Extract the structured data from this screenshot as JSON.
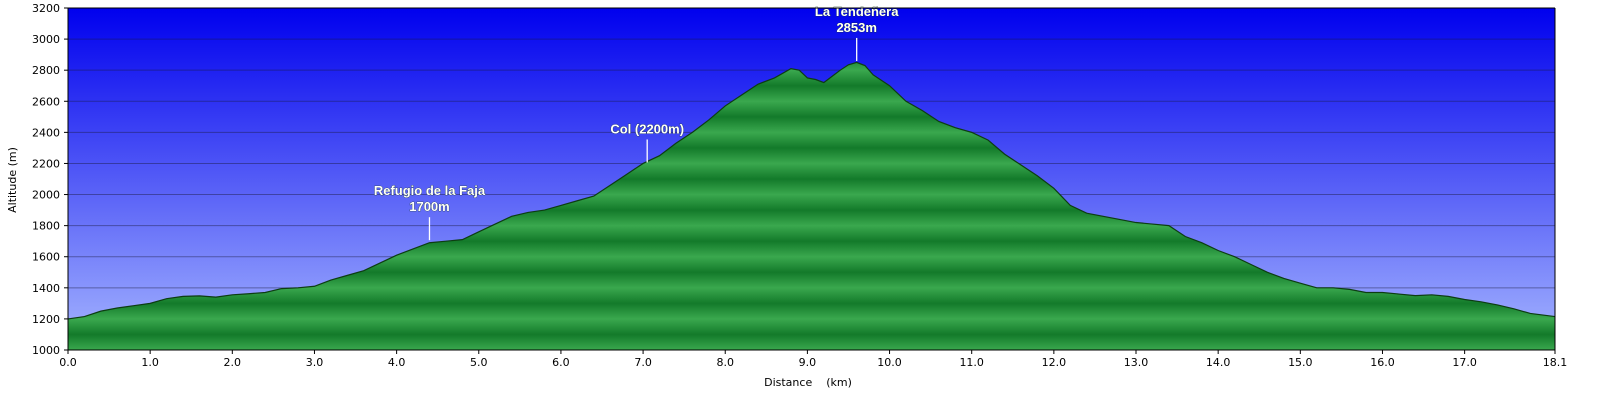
{
  "chart_data": {
    "type": "area",
    "xlabel": "Distance    (km)",
    "ylabel": "Altitude (m)",
    "xlim": [
      0,
      18.1
    ],
    "ylim": [
      1000,
      3200
    ],
    "x_ticks": [
      "0.0",
      "1.0",
      "2.0",
      "3.0",
      "4.0",
      "5.0",
      "6.0",
      "7.0",
      "8.0",
      "9.0",
      "10.0",
      "11.0",
      "12.0",
      "13.0",
      "14.0",
      "15.0",
      "16.0",
      "17.0",
      "18.1"
    ],
    "y_ticks": [
      "1000",
      "1200",
      "1400",
      "1600",
      "1800",
      "2000",
      "2200",
      "2400",
      "2600",
      "2800",
      "3000",
      "3200"
    ],
    "grid": true,
    "colors": {
      "sky_top": "#0000ee",
      "sky_bottom": "#a6b6ff",
      "fill_light": "#3aa84e",
      "fill_dark": "#137a2a",
      "outline": "#0d3d12"
    },
    "series": [
      {
        "x": [
          0.0,
          0.2,
          0.4,
          0.6,
          0.8,
          1.0,
          1.2,
          1.4,
          1.6,
          1.8,
          2.0,
          2.2,
          2.4,
          2.6,
          2.8,
          3.0,
          3.2,
          3.4,
          3.6,
          3.8,
          4.0,
          4.2,
          4.4,
          4.6,
          4.8,
          5.0,
          5.2,
          5.4,
          5.6,
          5.8,
          6.0,
          6.2,
          6.4,
          6.6,
          6.8,
          7.0,
          7.2,
          7.4,
          7.6,
          7.8,
          8.0,
          8.2,
          8.4,
          8.6,
          8.8,
          8.9,
          9.0,
          9.1,
          9.2,
          9.3,
          9.4,
          9.5,
          9.6,
          9.7,
          9.8,
          10.0,
          10.2,
          10.4,
          10.6,
          10.8,
          11.0,
          11.2,
          11.4,
          11.6,
          11.8,
          12.0,
          12.2,
          12.4,
          12.6,
          12.8,
          13.0,
          13.2,
          13.4,
          13.6,
          13.8,
          14.0,
          14.2,
          14.4,
          14.6,
          14.8,
          15.0,
          15.2,
          15.4,
          15.6,
          15.8,
          16.0,
          16.2,
          16.4,
          16.6,
          16.8,
          17.0,
          17.2,
          17.4,
          17.6,
          17.8,
          18.1
        ],
        "y": [
          1200,
          1215,
          1250,
          1270,
          1285,
          1300,
          1330,
          1345,
          1348,
          1340,
          1355,
          1362,
          1370,
          1395,
          1400,
          1410,
          1450,
          1480,
          1510,
          1560,
          1610,
          1650,
          1690,
          1700,
          1710,
          1760,
          1810,
          1860,
          1885,
          1900,
          1930,
          1960,
          1990,
          2060,
          2130,
          2200,
          2250,
          2330,
          2400,
          2480,
          2570,
          2640,
          2710,
          2750,
          2810,
          2800,
          2750,
          2740,
          2720,
          2760,
          2800,
          2835,
          2850,
          2830,
          2770,
          2700,
          2600,
          2540,
          2470,
          2430,
          2400,
          2350,
          2260,
          2190,
          2120,
          2040,
          1930,
          1880,
          1860,
          1840,
          1820,
          1810,
          1800,
          1730,
          1690,
          1640,
          1600,
          1550,
          1500,
          1460,
          1430,
          1400,
          1400,
          1390,
          1370,
          1370,
          1360,
          1350,
          1355,
          1345,
          1325,
          1310,
          1290,
          1265,
          1235,
          1215
        ]
      }
    ],
    "annotations": [
      {
        "lines": [
          "La Tendeñera",
          "2853m"
        ],
        "x": 9.6,
        "y": 2853
      },
      {
        "lines": [
          "Col (2200m)"
        ],
        "x": 7.05,
        "y": 2200
      },
      {
        "lines": [
          "Refugio de la Faja",
          "1700m"
        ],
        "x": 4.4,
        "y": 1700
      }
    ]
  }
}
